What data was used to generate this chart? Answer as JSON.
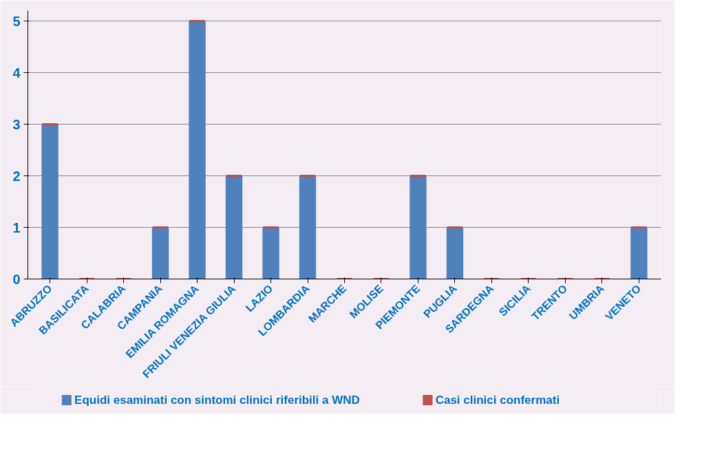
{
  "chart_data": {
    "type": "bar",
    "stacked": true,
    "categories": [
      "ABRUZZO",
      "BASILICATA",
      "CALABRIA",
      "CAMPANIA",
      "EMILIA ROMAGNA",
      "FRIULI VENEZIA GIULIA",
      "LAZIO",
      "LOMBARDIA",
      "MARCHE",
      "MOLISE",
      "PIEMONTE",
      "PUGLIA",
      "SARDEGNA",
      "SICILIA",
      "TRENTO",
      "UMBRIA",
      "VENETO"
    ],
    "series": [
      {
        "name": "Equidi esaminati con sintomi clinici riferibili a WND",
        "color": "#4f81bd",
        "values": [
          3,
          0,
          0,
          1,
          5,
          2,
          1,
          2,
          0,
          0,
          2,
          1,
          0,
          0,
          0,
          0,
          1
        ]
      },
      {
        "name": "Casi clinici confermati",
        "color": "#c0504d",
        "values": [
          0,
          0,
          0,
          0,
          0,
          0,
          0,
          0,
          0,
          0,
          0,
          0,
          0,
          0,
          0,
          0,
          0
        ]
      }
    ],
    "ylim": [
      0,
      5.2
    ],
    "yticks": [
      0,
      1,
      2,
      3,
      4,
      5
    ],
    "grid": "y",
    "legend": "bottom"
  }
}
